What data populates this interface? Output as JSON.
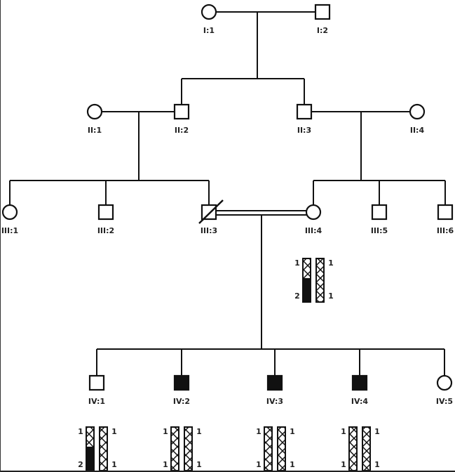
{
  "individuals": [
    {
      "id": "I:1",
      "label": "I:1",
      "sex": "female",
      "affected": false,
      "deceased": false
    },
    {
      "id": "I:2",
      "label": "I:2",
      "sex": "male",
      "affected": false,
      "deceased": false
    },
    {
      "id": "II:1",
      "label": "II:1",
      "sex": "female",
      "affected": false,
      "deceased": false
    },
    {
      "id": "II:2",
      "label": "II:2",
      "sex": "male",
      "affected": false,
      "deceased": false
    },
    {
      "id": "II:3",
      "label": "II:3",
      "sex": "male",
      "affected": false,
      "deceased": false
    },
    {
      "id": "II:4",
      "label": "II:4",
      "sex": "female",
      "affected": false,
      "deceased": false
    },
    {
      "id": "III:1",
      "label": "III:1",
      "sex": "female",
      "affected": false,
      "deceased": false
    },
    {
      "id": "III:2",
      "label": "III:2",
      "sex": "male",
      "affected": false,
      "deceased": false
    },
    {
      "id": "III:3",
      "label": "III:3",
      "sex": "male",
      "affected": false,
      "deceased": true
    },
    {
      "id": "III:4",
      "label": "III:4",
      "sex": "female",
      "affected": false,
      "deceased": false
    },
    {
      "id": "III:5",
      "label": "III:5",
      "sex": "male",
      "affected": false,
      "deceased": false
    },
    {
      "id": "III:6",
      "label": "III:6",
      "sex": "male",
      "affected": false,
      "deceased": false
    },
    {
      "id": "IV:1",
      "label": "IV:1",
      "sex": "male",
      "affected": false,
      "deceased": false
    },
    {
      "id": "IV:2",
      "label": "IV:2",
      "sex": "male",
      "affected": true,
      "deceased": false
    },
    {
      "id": "IV:3",
      "label": "IV:3",
      "sex": "male",
      "affected": true,
      "deceased": false
    },
    {
      "id": "IV:4",
      "label": "IV:4",
      "sex": "male",
      "affected": true,
      "deceased": false
    },
    {
      "id": "IV:5",
      "label": "IV:5",
      "sex": "female",
      "affected": false,
      "deceased": false
    }
  ],
  "unions": [
    {
      "partners": [
        "I:1",
        "I:2"
      ],
      "consanguineous": false,
      "children": [
        "II:2",
        "II:3"
      ]
    },
    {
      "partners": [
        "II:1",
        "II:2"
      ],
      "consanguineous": false,
      "children": [
        "III:1",
        "III:2",
        "III:3"
      ]
    },
    {
      "partners": [
        "II:3",
        "II:4"
      ],
      "consanguineous": false,
      "children": [
        "III:4",
        "III:5",
        "III:6"
      ]
    },
    {
      "partners": [
        "III:3",
        "III:4"
      ],
      "consanguineous": true,
      "children": [
        "IV:1",
        "IV:2",
        "IV:3",
        "IV:4",
        "IV:5"
      ]
    }
  ],
  "haplotypes": [
    {
      "id": "III:4",
      "left": {
        "top": "1",
        "bottom": "2",
        "black_segment": true
      },
      "right": {
        "top": "1",
        "bottom": "1",
        "black_segment": false
      }
    },
    {
      "id": "IV:1",
      "left": {
        "top": "1",
        "bottom": "2",
        "black_segment": true
      },
      "right": {
        "top": "1",
        "bottom": "1",
        "black_segment": false
      }
    },
    {
      "id": "IV:2",
      "left": {
        "top": "1",
        "bottom": "1",
        "black_segment": false
      },
      "right": {
        "top": "1",
        "bottom": "1",
        "black_segment": false
      }
    },
    {
      "id": "IV:3",
      "left": {
        "top": "1",
        "bottom": "1",
        "black_segment": false
      },
      "right": {
        "top": "1",
        "bottom": "1",
        "black_segment": false
      }
    },
    {
      "id": "IV:4",
      "left": {
        "top": "1",
        "bottom": "1",
        "black_segment": false
      },
      "right": {
        "top": "1",
        "bottom": "1",
        "black_segment": false
      }
    }
  ]
}
